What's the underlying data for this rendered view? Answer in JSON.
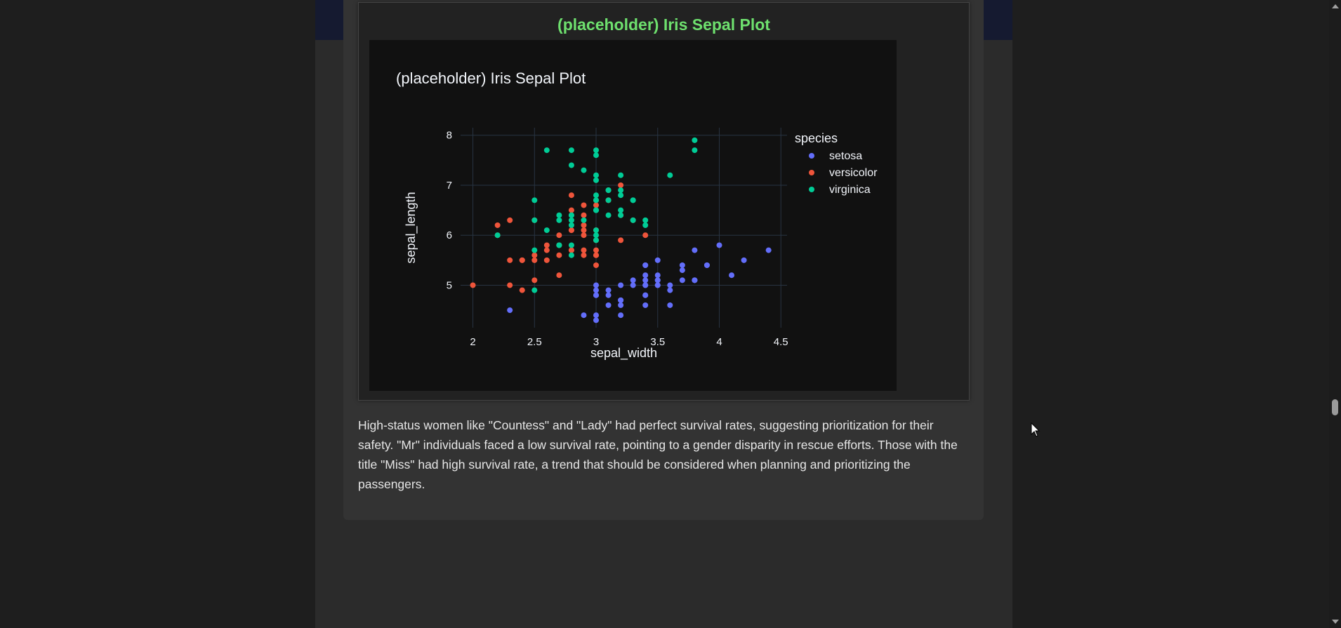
{
  "plot_section": {
    "heading": "(placeholder) Iris Sepal Plot",
    "heading_color": "#6ee06e"
  },
  "description": {
    "text": "High-status women like \"Countess\" and \"Lady\" had perfect survival rates, suggesting prioritization for their safety. \"Mr\" individuals faced a low survival rate, pointing to a gender disparity in rescue efforts. Those with the title \"Miss\" had high survival rate, a trend that should be considered when planning and prioritizing the passengers."
  },
  "theme": {
    "page_bg": "#1e1e1e",
    "plot_bg": "#111111",
    "grid_color": "#283442",
    "text_color": "#f2f5fa"
  },
  "chart_data": {
    "type": "scatter",
    "title": "(placeholder) Iris Sepal Plot",
    "xlabel": "sepal_width",
    "ylabel": "sepal_length",
    "xlim": [
      1.9,
      4.55
    ],
    "ylim": [
      4.15,
      8.15
    ],
    "xticks": [
      "2",
      "2.5",
      "3",
      "3.5",
      "4",
      "4.5"
    ],
    "yticks": [
      "5",
      "6",
      "7",
      "8"
    ],
    "grid": true,
    "legend_title": "species",
    "legend_position": "top-right",
    "series": [
      {
        "name": "setosa",
        "color": "#636efa",
        "points": [
          [
            3.5,
            5.1
          ],
          [
            3.0,
            4.9
          ],
          [
            3.2,
            4.7
          ],
          [
            3.1,
            4.6
          ],
          [
            3.6,
            5.0
          ],
          [
            3.9,
            5.4
          ],
          [
            3.4,
            4.6
          ],
          [
            3.4,
            5.0
          ],
          [
            2.9,
            4.4
          ],
          [
            3.1,
            4.9
          ],
          [
            3.7,
            5.4
          ],
          [
            3.4,
            4.8
          ],
          [
            3.0,
            4.8
          ],
          [
            3.0,
            4.3
          ],
          [
            4.0,
            5.8
          ],
          [
            4.4,
            5.7
          ],
          [
            3.9,
            5.4
          ],
          [
            3.5,
            5.1
          ],
          [
            3.8,
            5.7
          ],
          [
            3.8,
            5.1
          ],
          [
            3.4,
            5.4
          ],
          [
            3.7,
            5.1
          ],
          [
            3.6,
            4.6
          ],
          [
            3.3,
            5.1
          ],
          [
            3.4,
            4.8
          ],
          [
            3.0,
            5.0
          ],
          [
            3.4,
            5.0
          ],
          [
            3.5,
            5.2
          ],
          [
            3.4,
            5.2
          ],
          [
            3.2,
            4.7
          ],
          [
            3.1,
            4.8
          ],
          [
            3.4,
            5.4
          ],
          [
            4.1,
            5.2
          ],
          [
            4.2,
            5.5
          ],
          [
            3.2,
            5.0
          ],
          [
            3.5,
            5.5
          ],
          [
            3.6,
            4.9
          ],
          [
            3.0,
            4.4
          ],
          [
            3.4,
            5.1
          ],
          [
            3.5,
            5.0
          ],
          [
            2.3,
            4.5
          ],
          [
            3.2,
            4.4
          ],
          [
            3.5,
            5.0
          ],
          [
            3.8,
            5.1
          ],
          [
            3.0,
            4.8
          ],
          [
            3.8,
            5.1
          ],
          [
            3.2,
            4.6
          ],
          [
            3.7,
            5.3
          ],
          [
            3.3,
            5.0
          ]
        ]
      },
      {
        "name": "versicolor",
        "color": "#ef553b",
        "points": [
          [
            3.2,
            7.0
          ],
          [
            3.2,
            6.4
          ],
          [
            3.1,
            6.9
          ],
          [
            2.3,
            5.5
          ],
          [
            2.8,
            6.5
          ],
          [
            2.8,
            5.7
          ],
          [
            3.3,
            6.3
          ],
          [
            2.4,
            4.9
          ],
          [
            2.9,
            6.6
          ],
          [
            2.7,
            5.2
          ],
          [
            2.0,
            5.0
          ],
          [
            3.0,
            5.9
          ],
          [
            2.2,
            6.0
          ],
          [
            2.9,
            6.1
          ],
          [
            2.9,
            5.6
          ],
          [
            3.1,
            6.7
          ],
          [
            3.0,
            5.6
          ],
          [
            2.7,
            5.8
          ],
          [
            2.2,
            6.2
          ],
          [
            2.5,
            5.6
          ],
          [
            3.2,
            5.9
          ],
          [
            2.8,
            6.1
          ],
          [
            2.5,
            6.3
          ],
          [
            2.8,
            6.1
          ],
          [
            2.9,
            6.4
          ],
          [
            3.0,
            6.6
          ],
          [
            2.8,
            6.8
          ],
          [
            3.0,
            6.7
          ],
          [
            2.9,
            6.0
          ],
          [
            2.6,
            5.7
          ],
          [
            2.4,
            5.5
          ],
          [
            2.4,
            5.5
          ],
          [
            2.7,
            5.8
          ],
          [
            2.7,
            6.0
          ],
          [
            3.0,
            5.4
          ],
          [
            3.4,
            6.0
          ],
          [
            3.1,
            6.7
          ],
          [
            2.3,
            6.3
          ],
          [
            3.0,
            5.6
          ],
          [
            2.5,
            5.5
          ],
          [
            2.6,
            5.5
          ],
          [
            3.0,
            6.1
          ],
          [
            2.6,
            5.8
          ],
          [
            2.3,
            5.0
          ],
          [
            2.7,
            5.6
          ],
          [
            3.0,
            5.7
          ],
          [
            2.9,
            5.7
          ],
          [
            2.9,
            6.2
          ],
          [
            2.5,
            5.1
          ],
          [
            2.8,
            5.7
          ]
        ]
      },
      {
        "name": "virginica",
        "color": "#00cc96",
        "points": [
          [
            3.3,
            6.3
          ],
          [
            2.7,
            5.8
          ],
          [
            3.0,
            7.1
          ],
          [
            2.9,
            6.3
          ],
          [
            3.0,
            6.5
          ],
          [
            3.0,
            7.6
          ],
          [
            2.5,
            4.9
          ],
          [
            2.9,
            7.3
          ],
          [
            2.5,
            6.7
          ],
          [
            3.6,
            7.2
          ],
          [
            3.2,
            6.5
          ],
          [
            2.7,
            6.4
          ],
          [
            3.0,
            6.8
          ],
          [
            2.5,
            5.7
          ],
          [
            2.8,
            5.8
          ],
          [
            3.2,
            6.4
          ],
          [
            3.0,
            6.5
          ],
          [
            3.8,
            7.7
          ],
          [
            2.6,
            7.7
          ],
          [
            2.2,
            6.0
          ],
          [
            3.2,
            6.9
          ],
          [
            2.8,
            5.6
          ],
          [
            2.8,
            7.7
          ],
          [
            2.7,
            6.3
          ],
          [
            3.3,
            6.7
          ],
          [
            3.2,
            7.2
          ],
          [
            2.8,
            6.2
          ],
          [
            3.0,
            6.1
          ],
          [
            2.8,
            6.4
          ],
          [
            3.0,
            7.2
          ],
          [
            2.8,
            7.4
          ],
          [
            3.8,
            7.9
          ],
          [
            2.8,
            6.4
          ],
          [
            2.8,
            6.3
          ],
          [
            2.6,
            6.1
          ],
          [
            3.0,
            7.7
          ],
          [
            3.4,
            6.3
          ],
          [
            3.1,
            6.4
          ],
          [
            3.0,
            6.0
          ],
          [
            3.1,
            6.9
          ],
          [
            3.1,
            6.7
          ],
          [
            3.1,
            6.9
          ],
          [
            2.7,
            5.8
          ],
          [
            3.2,
            6.8
          ],
          [
            3.3,
            6.7
          ],
          [
            3.0,
            6.7
          ],
          [
            2.5,
            6.3
          ],
          [
            3.0,
            6.5
          ],
          [
            3.4,
            6.2
          ],
          [
            3.0,
            5.9
          ]
        ]
      }
    ]
  }
}
